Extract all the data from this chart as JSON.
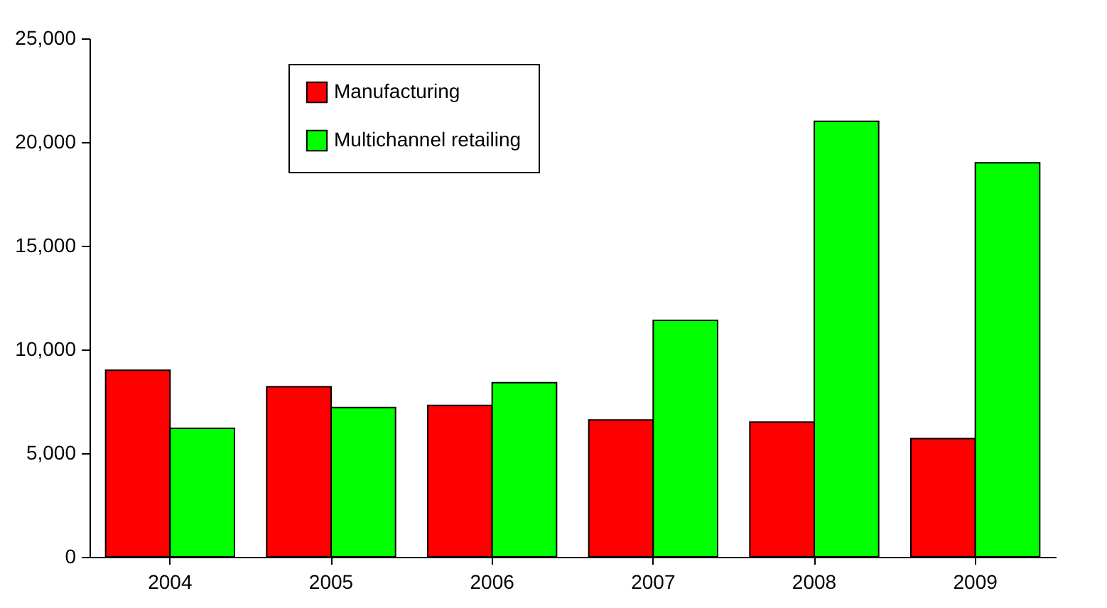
{
  "chart_data": {
    "type": "bar",
    "categories": [
      "2004",
      "2005",
      "2006",
      "2007",
      "2008",
      "2009"
    ],
    "series": [
      {
        "name": "Manufacturing",
        "color": "#ff0000",
        "values": [
          9000,
          8200,
          7300,
          6600,
          6500,
          5700
        ]
      },
      {
        "name": "Multichannel retailing",
        "color": "#00ff00",
        "values": [
          6200,
          7200,
          8400,
          11400,
          21000,
          19000
        ]
      }
    ],
    "ylim": [
      0,
      25000
    ],
    "yticks": [
      0,
      {
        "value": 5000,
        "label": "5,000"
      },
      {
        "value": 10000,
        "label": "10,000"
      },
      {
        "value": 15000,
        "label": "15,000"
      },
      {
        "value": 20000,
        "label": "20,000"
      },
      {
        "value": 25000,
        "label": "25,000"
      }
    ],
    "grid": false,
    "legend": "top left"
  }
}
